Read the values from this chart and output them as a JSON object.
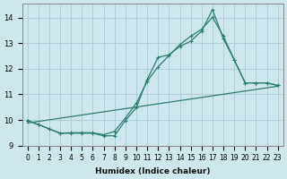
{
  "xlabel": "Humidex (Indice chaleur)",
  "bg_color": "#cce8ec",
  "grid_color": "#b0d0d8",
  "line_color": "#2e7d6e",
  "xlim": [
    -0.5,
    23.5
  ],
  "ylim": [
    9.0,
    14.55
  ],
  "yticks": [
    9,
    10,
    11,
    12,
    13,
    14
  ],
  "xticks": [
    0,
    1,
    2,
    3,
    4,
    5,
    6,
    7,
    8,
    9,
    10,
    11,
    12,
    13,
    14,
    15,
    16,
    17,
    18,
    19,
    20,
    21,
    22,
    23
  ],
  "series1_x": [
    0,
    1,
    2,
    3,
    4,
    5,
    6,
    7,
    8,
    9,
    10,
    11,
    12,
    13,
    14,
    15,
    16,
    17,
    18,
    19,
    20,
    21,
    22,
    23
  ],
  "series1_y": [
    9.98,
    9.82,
    9.65,
    9.48,
    9.48,
    9.48,
    9.48,
    9.38,
    9.38,
    9.98,
    10.48,
    11.58,
    12.45,
    12.55,
    12.88,
    13.08,
    13.48,
    14.32,
    13.18,
    12.35,
    11.45,
    11.45,
    11.45,
    11.35
  ],
  "series2_x": [
    0,
    1,
    2,
    3,
    4,
    5,
    6,
    7,
    8,
    9,
    10,
    11,
    12,
    13,
    14,
    15,
    16,
    17,
    18,
    19,
    20,
    21,
    22,
    23
  ],
  "series2_y": [
    9.98,
    9.82,
    9.65,
    9.48,
    9.5,
    9.5,
    9.5,
    9.42,
    9.55,
    10.08,
    10.65,
    11.52,
    12.08,
    12.52,
    12.95,
    13.28,
    13.55,
    14.02,
    13.28,
    12.35,
    11.45,
    11.45,
    11.45,
    11.35
  ],
  "series3_x": [
    0,
    23
  ],
  "series3_y": [
    9.88,
    11.32
  ]
}
